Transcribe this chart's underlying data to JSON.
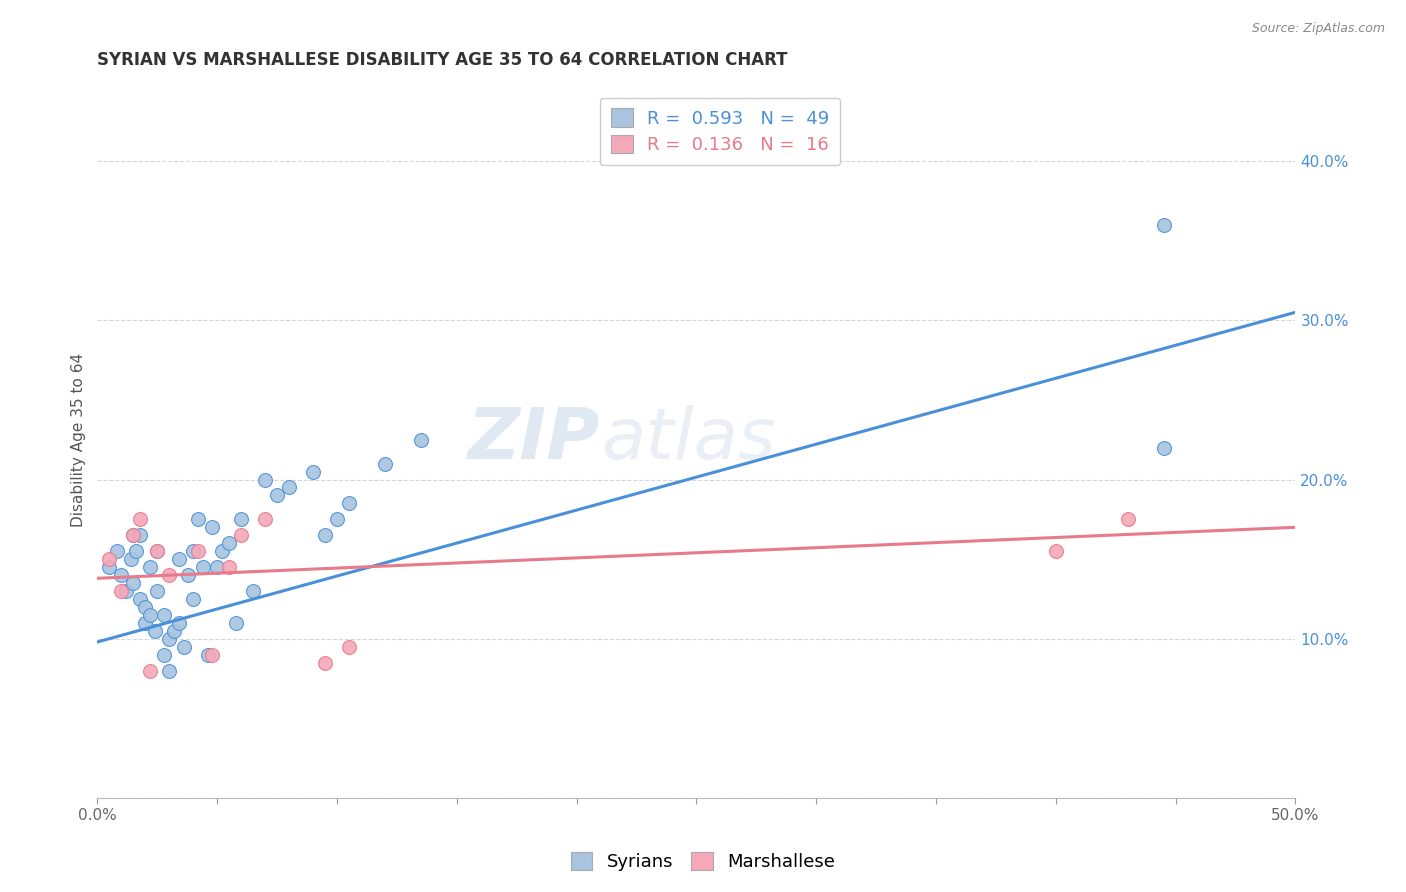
{
  "title": "SYRIAN VS MARSHALLESE DISABILITY AGE 35 TO 64 CORRELATION CHART",
  "source": "Source: ZipAtlas.com",
  "ylabel": "Disability Age 35 to 64",
  "xlim": [
    0.0,
    0.5
  ],
  "ylim": [
    0.0,
    0.45
  ],
  "xticks": [
    0.0,
    0.05,
    0.1,
    0.15,
    0.2,
    0.25,
    0.3,
    0.35,
    0.4,
    0.45,
    0.5
  ],
  "yticks": [
    0.0,
    0.1,
    0.2,
    0.3,
    0.4
  ],
  "ytick_labels": [
    "",
    "10.0%",
    "20.0%",
    "30.0%",
    "40.0%"
  ],
  "xtick_labels": [
    "0.0%",
    "",
    "",
    "",
    "",
    "",
    "",
    "",
    "",
    "",
    "50.0%"
  ],
  "syrian_R": 0.593,
  "syrian_N": 49,
  "marshallese_R": 0.136,
  "marshallese_N": 16,
  "syrian_color": "#a8c4e0",
  "marshallese_color": "#f4a8b8",
  "syrian_line_color": "#4a90d9",
  "marshallese_line_color": "#e87a8a",
  "background_color": "#ffffff",
  "watermark_text": "ZIP",
  "watermark_text2": "atlas",
  "syrian_x": [
    0.005,
    0.008,
    0.01,
    0.012,
    0.014,
    0.015,
    0.015,
    0.016,
    0.018,
    0.018,
    0.02,
    0.02,
    0.022,
    0.022,
    0.024,
    0.025,
    0.025,
    0.028,
    0.028,
    0.03,
    0.03,
    0.032,
    0.034,
    0.034,
    0.036,
    0.038,
    0.04,
    0.04,
    0.042,
    0.044,
    0.046,
    0.048,
    0.05,
    0.052,
    0.055,
    0.058,
    0.06,
    0.065,
    0.07,
    0.075,
    0.08,
    0.09,
    0.095,
    0.1,
    0.105,
    0.12,
    0.135,
    0.445,
    0.445
  ],
  "syrian_y": [
    0.145,
    0.155,
    0.14,
    0.13,
    0.15,
    0.135,
    0.165,
    0.155,
    0.125,
    0.165,
    0.12,
    0.11,
    0.145,
    0.115,
    0.105,
    0.155,
    0.13,
    0.09,
    0.115,
    0.1,
    0.08,
    0.105,
    0.15,
    0.11,
    0.095,
    0.14,
    0.125,
    0.155,
    0.175,
    0.145,
    0.09,
    0.17,
    0.145,
    0.155,
    0.16,
    0.11,
    0.175,
    0.13,
    0.2,
    0.19,
    0.195,
    0.205,
    0.165,
    0.175,
    0.185,
    0.21,
    0.225,
    0.22,
    0.36
  ],
  "marshallese_x": [
    0.005,
    0.01,
    0.015,
    0.018,
    0.022,
    0.025,
    0.03,
    0.042,
    0.048,
    0.055,
    0.06,
    0.07,
    0.095,
    0.105,
    0.4,
    0.43
  ],
  "marshallese_y": [
    0.15,
    0.13,
    0.165,
    0.175,
    0.08,
    0.155,
    0.14,
    0.155,
    0.09,
    0.145,
    0.165,
    0.175,
    0.085,
    0.095,
    0.155,
    0.175
  ],
  "syrian_line_x": [
    0.0,
    0.5
  ],
  "syrian_line_y": [
    0.098,
    0.305
  ],
  "marshallese_line_x": [
    0.0,
    0.5
  ],
  "marshallese_line_y": [
    0.138,
    0.17
  ],
  "title_fontsize": 12,
  "axis_label_fontsize": 11,
  "tick_fontsize": 11,
  "legend_fontsize": 13
}
